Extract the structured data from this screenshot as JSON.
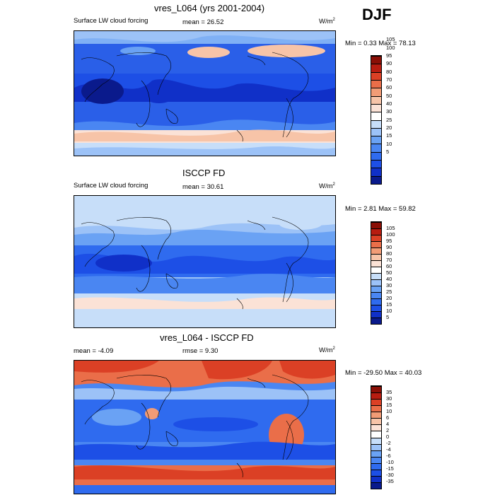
{
  "season": "DJF",
  "panels": [
    {
      "id": "model",
      "title": "vres_L064 (yrs 2001-2004)",
      "left_label": "Surface LW cloud forcing",
      "mid_label": "mean =  26.52",
      "units": "W/m",
      "units_sup": "2",
      "minmax": "Min =   0.33 Max =  78.13",
      "colorbar_levels": [
        "5",
        "10",
        "15",
        "20",
        "25",
        "30",
        "40",
        "50",
        "60",
        "70",
        "80",
        "90",
        "95",
        "100",
        "105"
      ],
      "colorbar_colors": [
        "#0a1a8c",
        "#1030c8",
        "#1d4fe6",
        "#2f6bef",
        "#4a86f2",
        "#6aa2f4",
        "#9cc2f7",
        "#c7def9",
        "#ffffff",
        "#fbe2d6",
        "#f7c4a8",
        "#f29c76",
        "#ea6e49",
        "#db4025",
        "#b71c10",
        "#8a0f06"
      ]
    },
    {
      "id": "obs",
      "title": "ISCCP FD",
      "left_label": "Surface LW cloud forcing",
      "mid_label": "mean =  30.61",
      "units": "W/m",
      "units_sup": "2",
      "minmax": "Min =   2.81 Max =  59.82",
      "colorbar_levels": [
        "5",
        "10",
        "15",
        "20",
        "25",
        "30",
        "40",
        "50",
        "60",
        "70",
        "80",
        "90",
        "95",
        "100",
        "105"
      ],
      "colorbar_colors": [
        "#0a1a8c",
        "#1030c8",
        "#1d4fe6",
        "#2f6bef",
        "#4a86f2",
        "#6aa2f4",
        "#9cc2f7",
        "#c7def9",
        "#ffffff",
        "#fbe2d6",
        "#f7c4a8",
        "#f29c76",
        "#ea6e49",
        "#db4025",
        "#b71c10",
        "#8a0f06"
      ]
    },
    {
      "id": "diff",
      "title": "vres_L064 - ISCCP FD",
      "left_label": "mean =  -4.09",
      "mid_label": "rmse =   9.30",
      "units": "W/m",
      "units_sup": "2",
      "minmax": "Min = -29.50 Max =  40.03",
      "colorbar_levels": [
        "-35",
        "-30",
        "-15",
        "-10",
        "-6",
        "-4",
        "-2",
        "0",
        "2",
        "4",
        "6",
        "10",
        "15",
        "30",
        "35"
      ],
      "colorbar_colors": [
        "#0a1a8c",
        "#1030c8",
        "#1d4fe6",
        "#2f6bef",
        "#4a86f2",
        "#6aa2f4",
        "#9cc2f7",
        "#c7def9",
        "#ffffff",
        "#fbe2d6",
        "#f7c4a8",
        "#f29c76",
        "#ea6e49",
        "#db4025",
        "#b71c10",
        "#8a0f06"
      ]
    }
  ]
}
